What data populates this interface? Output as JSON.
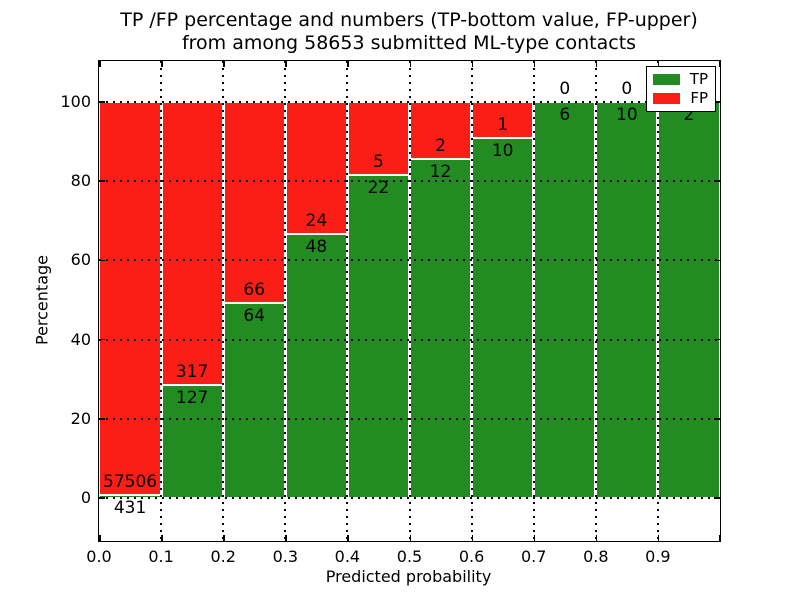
{
  "title_line1": "TP /FP percentage and numbers (TP-bottom value, FP-upper)",
  "title_line2": "from among 58653 submitted ML-type contacts",
  "chart_data": {
    "type": "bar",
    "stacked": true,
    "title": "TP /FP percentage and numbers (TP-bottom value, FP-upper) from among 58653 submitted ML-type contacts",
    "xlabel": "Predicted probability",
    "ylabel": "Percentage",
    "total_submitted": 58653,
    "bin_edges": [
      0.0,
      0.1,
      0.2,
      0.3,
      0.4,
      0.5,
      0.6,
      0.7,
      0.8,
      0.9,
      1.0
    ],
    "x_tick_labels": [
      "0.0",
      "0.1",
      "0.2",
      "0.3",
      "0.4",
      "0.5",
      "0.6",
      "0.7",
      "0.8",
      "0.9"
    ],
    "y_ticks": [
      0,
      20,
      40,
      60,
      80,
      100
    ],
    "y_tick_labels": [
      "0",
      "20",
      "40",
      "60",
      "80",
      "100"
    ],
    "xlim": [
      0.0,
      1.0
    ],
    "ylim": [
      -10.9,
      110.4
    ],
    "grid": {
      "visible": true,
      "style": "dotted",
      "color": "#000000"
    },
    "series": [
      {
        "name": "TP",
        "color": "#228b22",
        "values": [
          431,
          127,
          64,
          48,
          22,
          12,
          10,
          6,
          10,
          2
        ]
      },
      {
        "name": "FP",
        "color": "#fb1e16",
        "values": [
          57506,
          317,
          66,
          24,
          5,
          2,
          1,
          0,
          0,
          0
        ]
      }
    ],
    "tp_percent": [
      0.74,
      28.6,
      49.23,
      66.67,
      81.48,
      85.71,
      90.91,
      100,
      100,
      100
    ],
    "legend": {
      "position": "upper right",
      "entries": [
        {
          "label": "TP",
          "color": "#228b22"
        },
        {
          "label": "FP",
          "color": "#fb1e16"
        }
      ]
    }
  }
}
